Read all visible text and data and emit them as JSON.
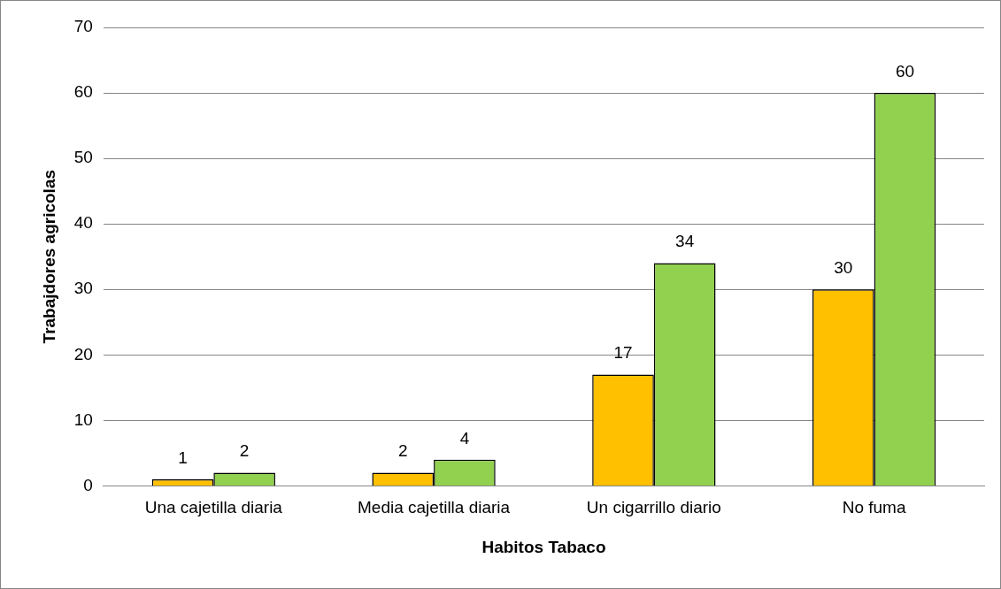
{
  "chart_data": {
    "type": "bar",
    "xlabel": "Habitos Tabaco",
    "ylabel": "Trabajdores agricolas",
    "categories": [
      "Una cajetilla diaria",
      "Media cajetilla diaria",
      "Un cigarrillo diario",
      "No fuma"
    ],
    "series": [
      {
        "color": "#ffc000",
        "values": [
          1,
          2,
          17,
          30
        ]
      },
      {
        "color": "#92d050",
        "values": [
          2,
          4,
          34,
          60
        ]
      }
    ],
    "ylim": [
      0,
      70
    ],
    "yticks": [
      0,
      10,
      20,
      30,
      40,
      50,
      60,
      70
    ],
    "grid": "y",
    "legend": false,
    "data_labels": true
  }
}
